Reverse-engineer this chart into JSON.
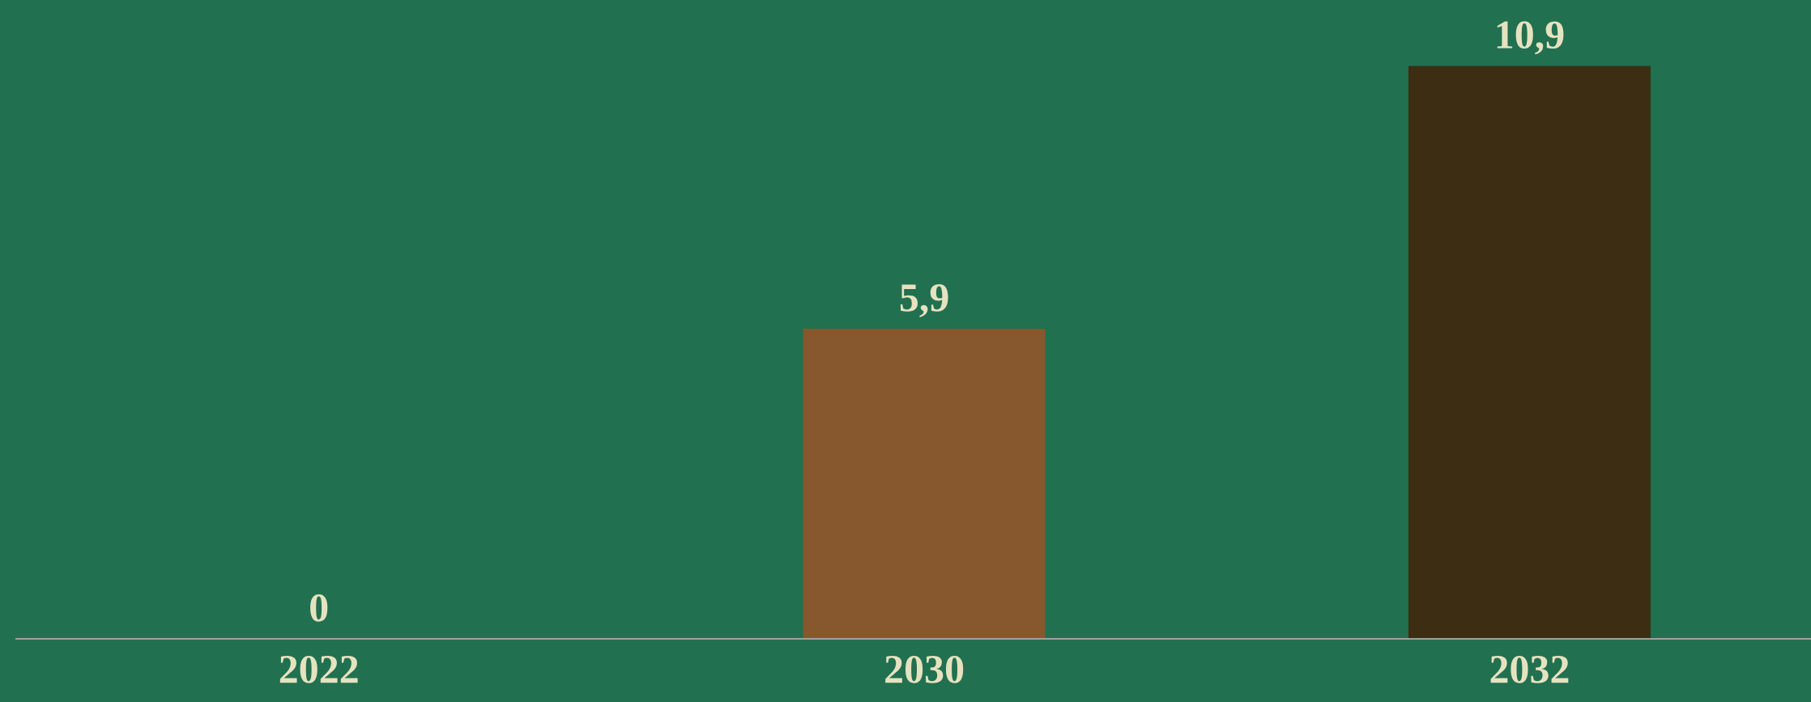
{
  "chart_data": {
    "type": "bar",
    "categories": [
      "2022",
      "2030",
      "2032"
    ],
    "values": [
      0,
      5.9,
      10.9
    ],
    "colors": [
      "#87582e",
      "#87582e",
      "#3d2d12"
    ],
    "value_labels": [
      "0",
      "5,9",
      "10,9"
    ],
    "grid": false,
    "legend": false
  }
}
